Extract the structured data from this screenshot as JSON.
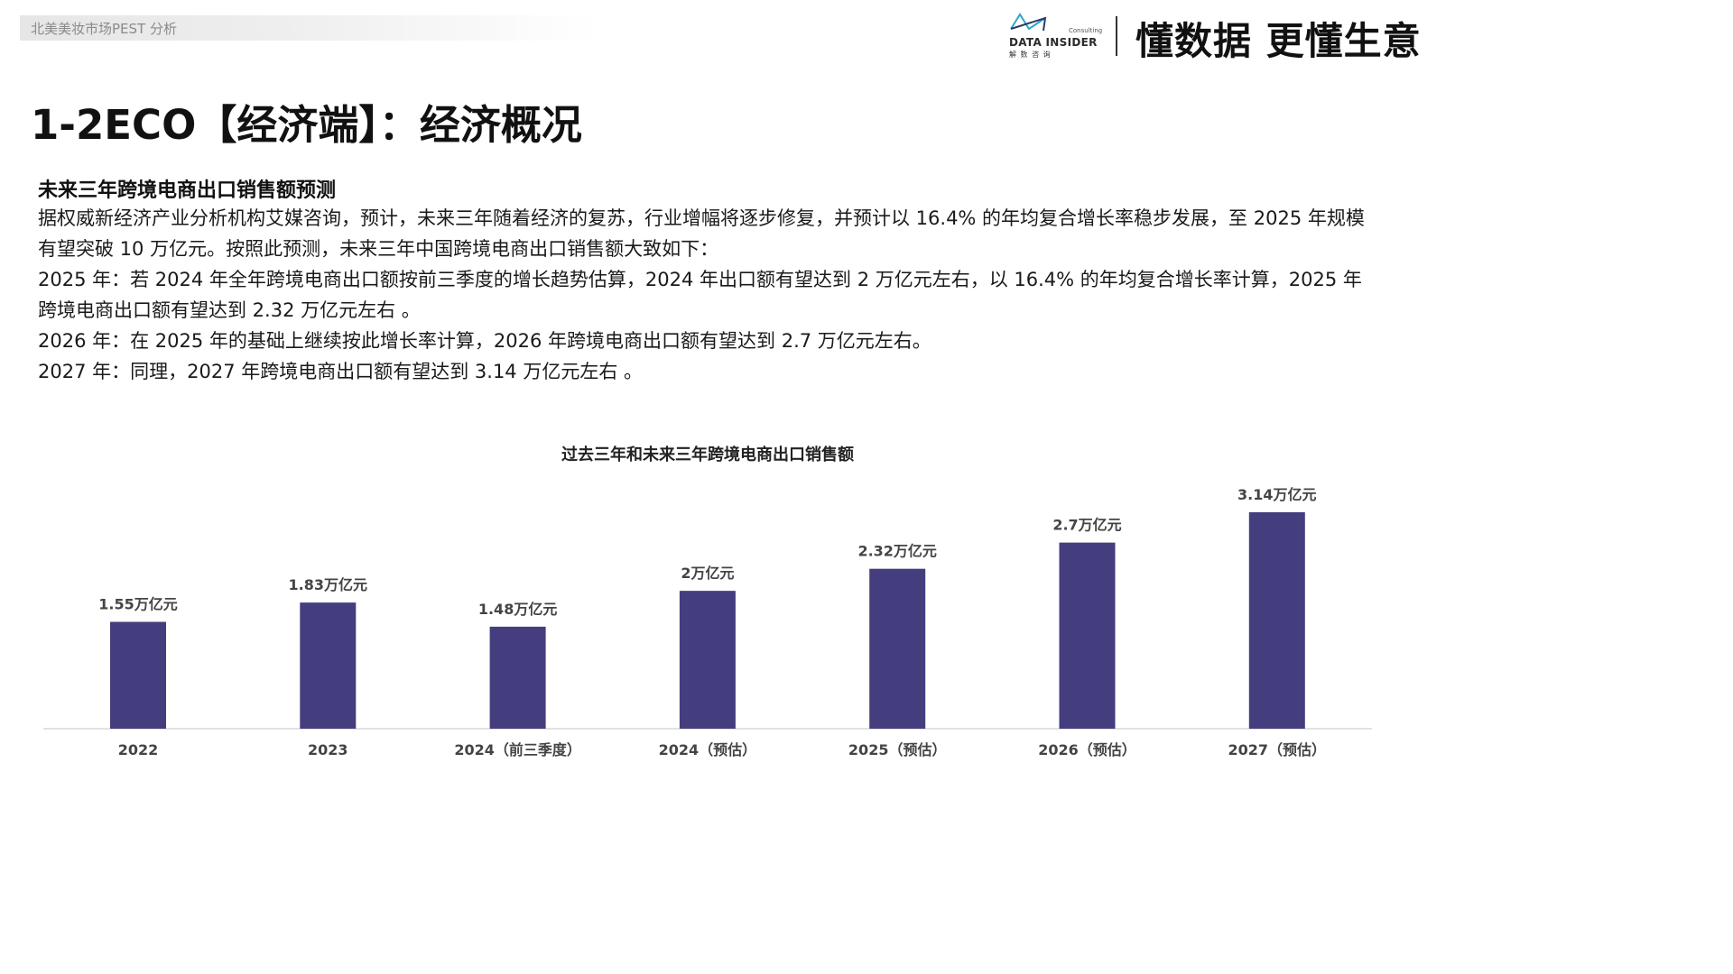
{
  "header": {
    "breadcrumb": "北美美妆市场PEST 分析",
    "logo_consulting": "Consulting",
    "logo_name": "DATA INSIDER",
    "logo_sub": "解 数 咨 询",
    "slogan": "懂数据 更懂生意"
  },
  "page": {
    "title": "1-2ECO【经济端】：经济概况",
    "section_heading": "未来三年跨境电商出口销售额预测",
    "paragraphs": [
      "据权威新经济产业分析机构艾媒咨询，预计，未来三年随着经济的复苏，行业增幅将逐步修复，并预计以 16.4% 的年均复合增长率稳步发展，至 2025 年规模有望突破 10 万亿元。按照此预测，未来三年中国跨境电商出口销售额大致如下：",
      "2025 年：若 2024 年全年跨境电商出口额按前三季度的增长趋势估算，2024 年出口额有望达到 2 万亿元左右，以 16.4% 的年均复合增长率计算，2025 年跨境电商出口额有望达到 2.32 万亿元左右 。",
      "2026 年：在 2025 年的基础上继续按此增长率计算，2026 年跨境电商出口额有望达到 2.7 万亿元左右。",
      "2027 年：同理，2027 年跨境电商出口额有望达到 3.14 万亿元左右 。"
    ]
  },
  "colors": {
    "bar": "#443e7e",
    "axis": "#d9d9d9"
  },
  "chart_data": {
    "type": "bar",
    "title": "过去三年和未来三年跨境电商出口销售额",
    "categories": [
      "2022",
      "2023",
      "2024（前三季度）",
      "2024（预估）",
      "2025（预估）",
      "2026（预估）",
      "2027（预估）"
    ],
    "values": [
      1.55,
      1.83,
      1.48,
      2,
      2.32,
      2.7,
      3.14
    ],
    "data_labels": [
      "1.55万亿元",
      "1.83万亿元",
      "1.48万亿元",
      "2万亿元",
      "2.32万亿元",
      "2.7万亿元",
      "3.14万亿元"
    ],
    "unit": "万亿元",
    "ylim": [
      0,
      3.14
    ],
    "grid": false,
    "legend": "none"
  }
}
